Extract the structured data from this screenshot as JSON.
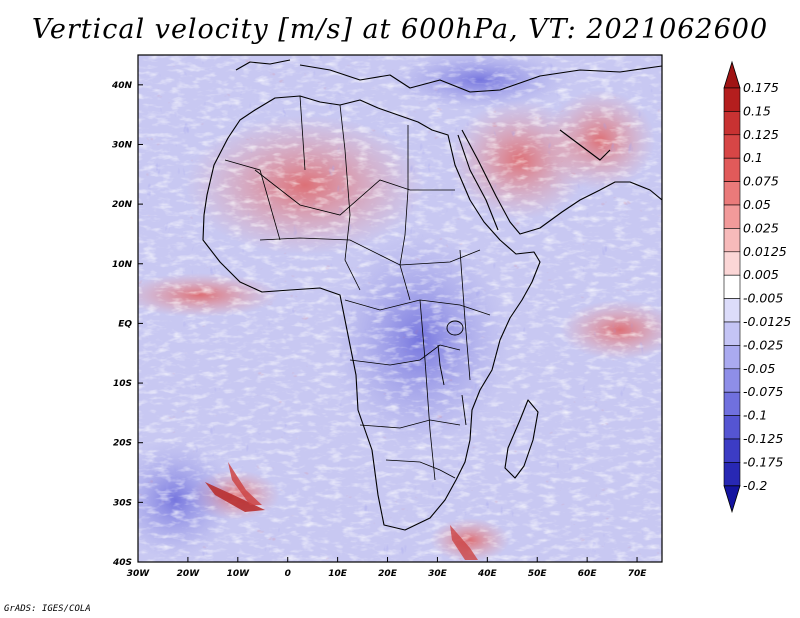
{
  "title": "Vertical velocity [m/s] at 600hPa, VT: 2021062600",
  "credit": "GrADS: IGES/COLA",
  "map": {
    "lon_range": [
      -30,
      75
    ],
    "lat_range": [
      -40,
      45
    ],
    "lon_ticks": [
      {
        "value": -30,
        "label": "30W"
      },
      {
        "value": -20,
        "label": "20W"
      },
      {
        "value": -10,
        "label": "10W"
      },
      {
        "value": 0,
        "label": "0"
      },
      {
        "value": 10,
        "label": "10E"
      },
      {
        "value": 20,
        "label": "20E"
      },
      {
        "value": 30,
        "label": "30E"
      },
      {
        "value": 40,
        "label": "40E"
      },
      {
        "value": 50,
        "label": "50E"
      },
      {
        "value": 60,
        "label": "60E"
      },
      {
        "value": 70,
        "label": "70E"
      }
    ],
    "lat_ticks": [
      {
        "value": 40,
        "label": "40N"
      },
      {
        "value": 30,
        "label": "30N"
      },
      {
        "value": 20,
        "label": "20N"
      },
      {
        "value": 10,
        "label": "10N"
      },
      {
        "value": 0,
        "label": "EQ"
      },
      {
        "value": -10,
        "label": "10S"
      },
      {
        "value": -20,
        "label": "20S"
      },
      {
        "value": -30,
        "label": "30S"
      },
      {
        "value": -40,
        "label": "40S"
      }
    ]
  },
  "colorbar": {
    "levels": [
      {
        "label": "0.175",
        "color": "#b41e1e"
      },
      {
        "label": "0.15",
        "color": "#c83232"
      },
      {
        "label": "0.125",
        "color": "#d74646"
      },
      {
        "label": "0.1",
        "color": "#e15a5a"
      },
      {
        "label": "0.075",
        "color": "#ea7a7a"
      },
      {
        "label": "0.05",
        "color": "#f29a9a"
      },
      {
        "label": "0.025",
        "color": "#f7baba"
      },
      {
        "label": "0.0125",
        "color": "#fbd6d6"
      },
      {
        "label": "0.005",
        "color": "#ffffff"
      },
      {
        "label": "-0.005",
        "color": "#dcdcfa"
      },
      {
        "label": "-0.0125",
        "color": "#c4c4f5"
      },
      {
        "label": "-0.025",
        "color": "#aaaaf0"
      },
      {
        "label": "-0.05",
        "color": "#8e8ee8"
      },
      {
        "label": "-0.075",
        "color": "#7070de"
      },
      {
        "label": "-0.1",
        "color": "#5555d2"
      },
      {
        "label": "-0.125",
        "color": "#3c3cc4"
      },
      {
        "label": "-0.175",
        "color": "#2828b4"
      },
      {
        "label": "-0.2",
        "color": "#1e1e9c"
      }
    ],
    "top_color": "#a01414",
    "bottom_color": "#1414a0"
  }
}
